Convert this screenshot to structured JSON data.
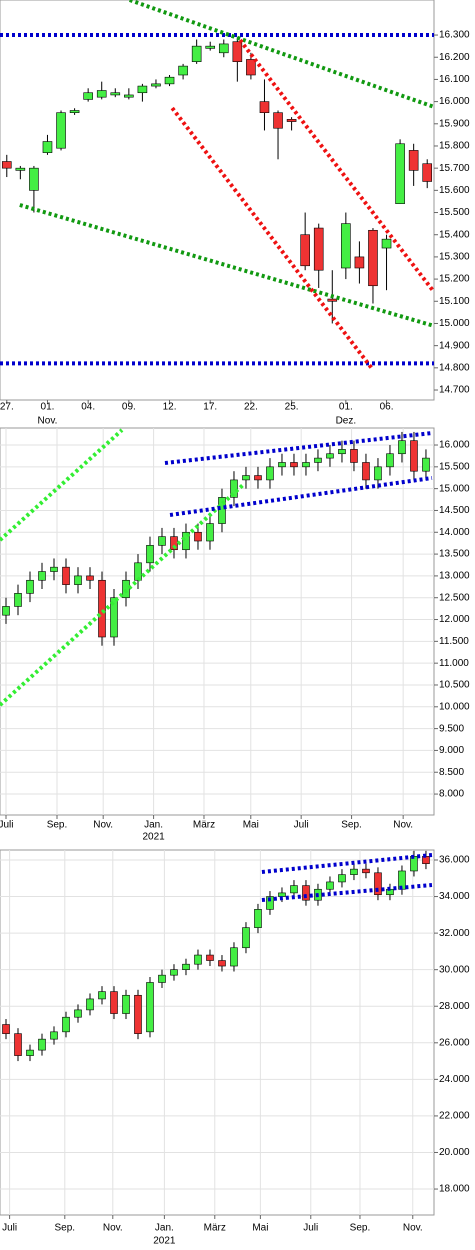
{
  "chart_data": [
    {
      "type": "candlestick",
      "grid": false,
      "up_color": "#44ee44",
      "down_color": "#ee3333",
      "xlim": [
        -0.5,
        31.5
      ],
      "ylim": [
        14655,
        16458
      ],
      "xticks": [
        {
          "value": 0,
          "label": "27."
        },
        {
          "value": 3,
          "label": "01."
        },
        {
          "value": 6,
          "label": "04."
        },
        {
          "value": 9,
          "label": "09."
        },
        {
          "value": 12,
          "label": "12."
        },
        {
          "value": 15,
          "label": "17."
        },
        {
          "value": 18,
          "label": "22."
        },
        {
          "value": 21,
          "label": "25."
        },
        {
          "value": 25,
          "label": "01."
        },
        {
          "value": 28,
          "label": "06."
        }
      ],
      "xticks2": [
        {
          "value": 3,
          "label": "Nov."
        },
        {
          "value": 25,
          "label": "Dez."
        }
      ],
      "yticks": [
        {
          "value": 14700,
          "label": "14.700"
        },
        {
          "value": 14800,
          "label": "14.800"
        },
        {
          "value": 14900,
          "label": "14.900"
        },
        {
          "value": 15000,
          "label": "15.000"
        },
        {
          "value": 15100,
          "label": "15.100"
        },
        {
          "value": 15200,
          "label": "15.200"
        },
        {
          "value": 15300,
          "label": "15.300"
        },
        {
          "value": 15400,
          "label": "15.400"
        },
        {
          "value": 15500,
          "label": "15.500"
        },
        {
          "value": 15600,
          "label": "15.600"
        },
        {
          "value": 15700,
          "label": "15.700"
        },
        {
          "value": 15800,
          "label": "15.800"
        },
        {
          "value": 15900,
          "label": "15.900"
        },
        {
          "value": 16000,
          "label": "16.000"
        },
        {
          "value": 16100,
          "label": "16.100"
        },
        {
          "value": 16200,
          "label": "16.200"
        },
        {
          "value": 16300,
          "label": "16.300"
        }
      ],
      "open": [
        15730,
        15690,
        15600,
        15770,
        15790,
        15950,
        16010,
        16020,
        16030,
        16020,
        16040,
        16070,
        16080,
        16120,
        16180,
        16240,
        16220,
        16270,
        16190,
        16000,
        15950,
        15920,
        15400,
        15430,
        15110,
        15250,
        15300,
        15420,
        15340,
        15540,
        15780,
        15720
      ],
      "high": [
        15760,
        15710,
        15710,
        15850,
        15960,
        15970,
        16060,
        16090,
        16060,
        16060,
        16080,
        16100,
        16120,
        16170,
        16280,
        16270,
        16280,
        16290,
        16220,
        16100,
        15960,
        15930,
        15500,
        15450,
        15240,
        15500,
        15370,
        15430,
        15400,
        15830,
        15810,
        15740
      ],
      "low": [
        15660,
        15650,
        15500,
        15760,
        15780,
        15940,
        16000,
        16010,
        16020,
        16010,
        16000,
        16060,
        16070,
        16100,
        16170,
        16230,
        16200,
        16090,
        16100,
        15870,
        15740,
        15870,
        15240,
        15160,
        15000,
        15200,
        15180,
        15090,
        15150,
        15540,
        15620,
        15610
      ],
      "close": [
        15700,
        15700,
        15700,
        15820,
        15950,
        15960,
        16040,
        16050,
        16040,
        16030,
        16070,
        16080,
        16110,
        16160,
        16250,
        16250,
        16260,
        16180,
        16120,
        15950,
        15880,
        15910,
        15260,
        15240,
        15100,
        15450,
        15250,
        15170,
        15380,
        15810,
        15690,
        15640
      ],
      "trendlines": [
        {
          "color": "#0000cc",
          "x": [
            -0.5,
            31.5
          ],
          "y": [
            16300,
            16300
          ]
        },
        {
          "color": "#0000cc",
          "x": [
            -0.5,
            31.5
          ],
          "y": [
            14820,
            14820
          ]
        },
        {
          "color": "#119911",
          "x": [
            9.06,
            31.5
          ],
          "y": [
            16458,
            15976
          ]
        },
        {
          "color": "#119911",
          "x": [
            0.96,
            31.5
          ],
          "y": [
            15534,
            14989
          ]
        },
        {
          "color": "#ee1111",
          "x": [
            17.2,
            31.5
          ],
          "y": [
            16277,
            15142
          ]
        },
        {
          "color": "#ee1111",
          "x": [
            12.2,
            26.9
          ],
          "y": [
            15971,
            14799
          ]
        }
      ]
    },
    {
      "type": "candlestick",
      "grid": true,
      "up_color": "#44ee44",
      "down_color": "#ee3333",
      "xlim": [
        -0.5,
        35.67
      ],
      "ylim": [
        7520,
        16390
      ],
      "xticks": [
        {
          "value": 0,
          "label": "Juli"
        },
        {
          "value": 4.25,
          "label": "Sep."
        },
        {
          "value": 8.1,
          "label": "Nov."
        },
        {
          "value": 12.3,
          "label": "Jan."
        },
        {
          "value": 16.5,
          "label": "März"
        },
        {
          "value": 20.4,
          "label": "Mai"
        },
        {
          "value": 24.6,
          "label": "Juli"
        },
        {
          "value": 28.8,
          "label": "Sep."
        },
        {
          "value": 33.1,
          "label": "Nov."
        }
      ],
      "xticks2": [
        {
          "value": 12.3,
          "label": "2021"
        }
      ],
      "yticks": [
        {
          "value": 8000,
          "label": "8.000"
        },
        {
          "value": 8500,
          "label": "8.500"
        },
        {
          "value": 9000,
          "label": "9.000"
        },
        {
          "value": 9500,
          "label": "9.500"
        },
        {
          "value": 10000,
          "label": "10.000"
        },
        {
          "value": 10500,
          "label": "10.500"
        },
        {
          "value": 11000,
          "label": "11.000"
        },
        {
          "value": 11500,
          "label": "11.500"
        },
        {
          "value": 12000,
          "label": "12.000"
        },
        {
          "value": 12500,
          "label": "12.500"
        },
        {
          "value": 13000,
          "label": "13.000"
        },
        {
          "value": 13500,
          "label": "13.500"
        },
        {
          "value": 14000,
          "label": "14.000"
        },
        {
          "value": 14500,
          "label": "14.500"
        },
        {
          "value": 15000,
          "label": "15.000"
        },
        {
          "value": 15500,
          "label": "15.500"
        },
        {
          "value": 16000,
          "label": "16.000"
        }
      ],
      "open": [
        12100,
        12300,
        12600,
        12900,
        13100,
        13200,
        12800,
        13000,
        12900,
        11600,
        12500,
        12900,
        13300,
        13700,
        13900,
        13600,
        14000,
        13800,
        14200,
        14800,
        15200,
        15300,
        15200,
        15500,
        15600,
        15500,
        15600,
        15700,
        15800,
        15900,
        15600,
        15200,
        15500,
        15800,
        16100,
        15400
      ],
      "high": [
        12500,
        12800,
        13100,
        13300,
        13400,
        13400,
        13200,
        13200,
        13100,
        12700,
        13100,
        13500,
        13900,
        14100,
        14100,
        14200,
        14200,
        14400,
        15000,
        15400,
        15500,
        15500,
        15700,
        15800,
        15800,
        15800,
        15900,
        16000,
        16100,
        16100,
        15800,
        15700,
        16000,
        16300,
        16300,
        15900
      ],
      "low": [
        11900,
        12100,
        12400,
        12700,
        12900,
        12600,
        12600,
        12700,
        11400,
        11400,
        12300,
        12700,
        13100,
        13500,
        13400,
        13400,
        13600,
        13600,
        14000,
        14600,
        15000,
        15000,
        15000,
        15300,
        15300,
        15300,
        15400,
        15500,
        15600,
        15400,
        15000,
        15000,
        15300,
        15600,
        15200,
        15200
      ],
      "close": [
        12300,
        12600,
        12900,
        13100,
        13200,
        12800,
        13000,
        12900,
        11600,
        12500,
        12900,
        13300,
        13700,
        13900,
        13600,
        14000,
        13800,
        14200,
        14800,
        15200,
        15300,
        15200,
        15500,
        15600,
        15500,
        15600,
        15700,
        15800,
        15900,
        15600,
        15200,
        15500,
        15800,
        16100,
        15400,
        15700
      ],
      "trendlines": [
        {
          "color": "#33ee33",
          "x": [
            -0.5,
            9.67
          ],
          "y": [
            13823,
            16344
          ]
        },
        {
          "color": "#33ee33",
          "x": [
            -0.5,
            19.75
          ],
          "y": [
            10041,
            15083
          ]
        },
        {
          "color": "#0000cc",
          "x": [
            13.25,
            35.5
          ],
          "y": [
            15587,
            16275
          ]
        },
        {
          "color": "#0000cc",
          "x": [
            13.67,
            35.5
          ],
          "y": [
            14396,
            15244
          ]
        }
      ]
    },
    {
      "type": "candlestick",
      "grid": true,
      "up_color": "#44ee44",
      "down_color": "#ee3333",
      "xlim": [
        -0.5,
        35.67
      ],
      "ylim": [
        16580,
        36547
      ],
      "xticks": [
        {
          "value": 0.3,
          "label": "Juli"
        },
        {
          "value": 4.9,
          "label": "Sep."
        },
        {
          "value": 8.9,
          "label": "Nov."
        },
        {
          "value": 13.2,
          "label": "Jan."
        },
        {
          "value": 17.4,
          "label": "März"
        },
        {
          "value": 21.2,
          "label": "Mai"
        },
        {
          "value": 25.4,
          "label": "Juli"
        },
        {
          "value": 29.5,
          "label": "Sep."
        },
        {
          "value": 33.9,
          "label": "Nov."
        }
      ],
      "xticks2": [
        {
          "value": 13.2,
          "label": "2021"
        }
      ],
      "yticks": [
        {
          "value": 18000,
          "label": "18.000"
        },
        {
          "value": 20000,
          "label": "20.000"
        },
        {
          "value": 22000,
          "label": "22.000"
        },
        {
          "value": 24000,
          "label": "24.000"
        },
        {
          "value": 26000,
          "label": "26.000"
        },
        {
          "value": 28000,
          "label": "28.000"
        },
        {
          "value": 30000,
          "label": "30.000"
        },
        {
          "value": 32000,
          "label": "32.000"
        },
        {
          "value": 34000,
          "label": "34.000"
        },
        {
          "value": 36000,
          "label": "36.000"
        }
      ],
      "open": [
        27000,
        26500,
        25300,
        25600,
        26200,
        26600,
        27400,
        27800,
        28400,
        28800,
        27600,
        28600,
        26600,
        29300,
        29700,
        30000,
        30300,
        30800,
        30500,
        30200,
        31200,
        32300,
        33300,
        34000,
        34200,
        34600,
        33800,
        34400,
        34800,
        35200,
        35500,
        35300,
        34100,
        34400,
        35400,
        36200
      ],
      "high": [
        27300,
        26800,
        25900,
        26500,
        26900,
        27700,
        28100,
        28700,
        29100,
        29100,
        28900,
        28900,
        29600,
        30000,
        30300,
        30600,
        31100,
        31100,
        30800,
        31500,
        32600,
        33600,
        34300,
        34500,
        34900,
        34900,
        34700,
        35100,
        35500,
        35800,
        35800,
        35600,
        34700,
        35700,
        36500,
        36500
      ],
      "low": [
        26200,
        25000,
        25000,
        25300,
        25900,
        26300,
        27100,
        27500,
        28100,
        27300,
        27300,
        26200,
        26300,
        29000,
        29400,
        29700,
        30000,
        30200,
        29900,
        29900,
        30900,
        32000,
        33000,
        33700,
        33900,
        33500,
        33500,
        34100,
        34500,
        34900,
        35000,
        33800,
        33800,
        34100,
        35100,
        35500
      ],
      "close": [
        26500,
        25300,
        25600,
        26200,
        26600,
        27400,
        27800,
        28400,
        28800,
        27600,
        28600,
        26500,
        29300,
        29700,
        30000,
        30300,
        30800,
        30500,
        30200,
        31200,
        32300,
        33300,
        34000,
        34200,
        34600,
        33800,
        34400,
        34800,
        35200,
        35500,
        35300,
        34100,
        34400,
        35400,
        36200,
        35800
      ],
      "trendlines": [
        {
          "color": "#0000cc",
          "x": [
            21.33,
            35.5
          ],
          "y": [
            35344,
            36274
          ]
        },
        {
          "color": "#0000cc",
          "x": [
            21.33,
            35.5
          ],
          "y": [
            33812,
            34632
          ]
        }
      ]
    }
  ]
}
